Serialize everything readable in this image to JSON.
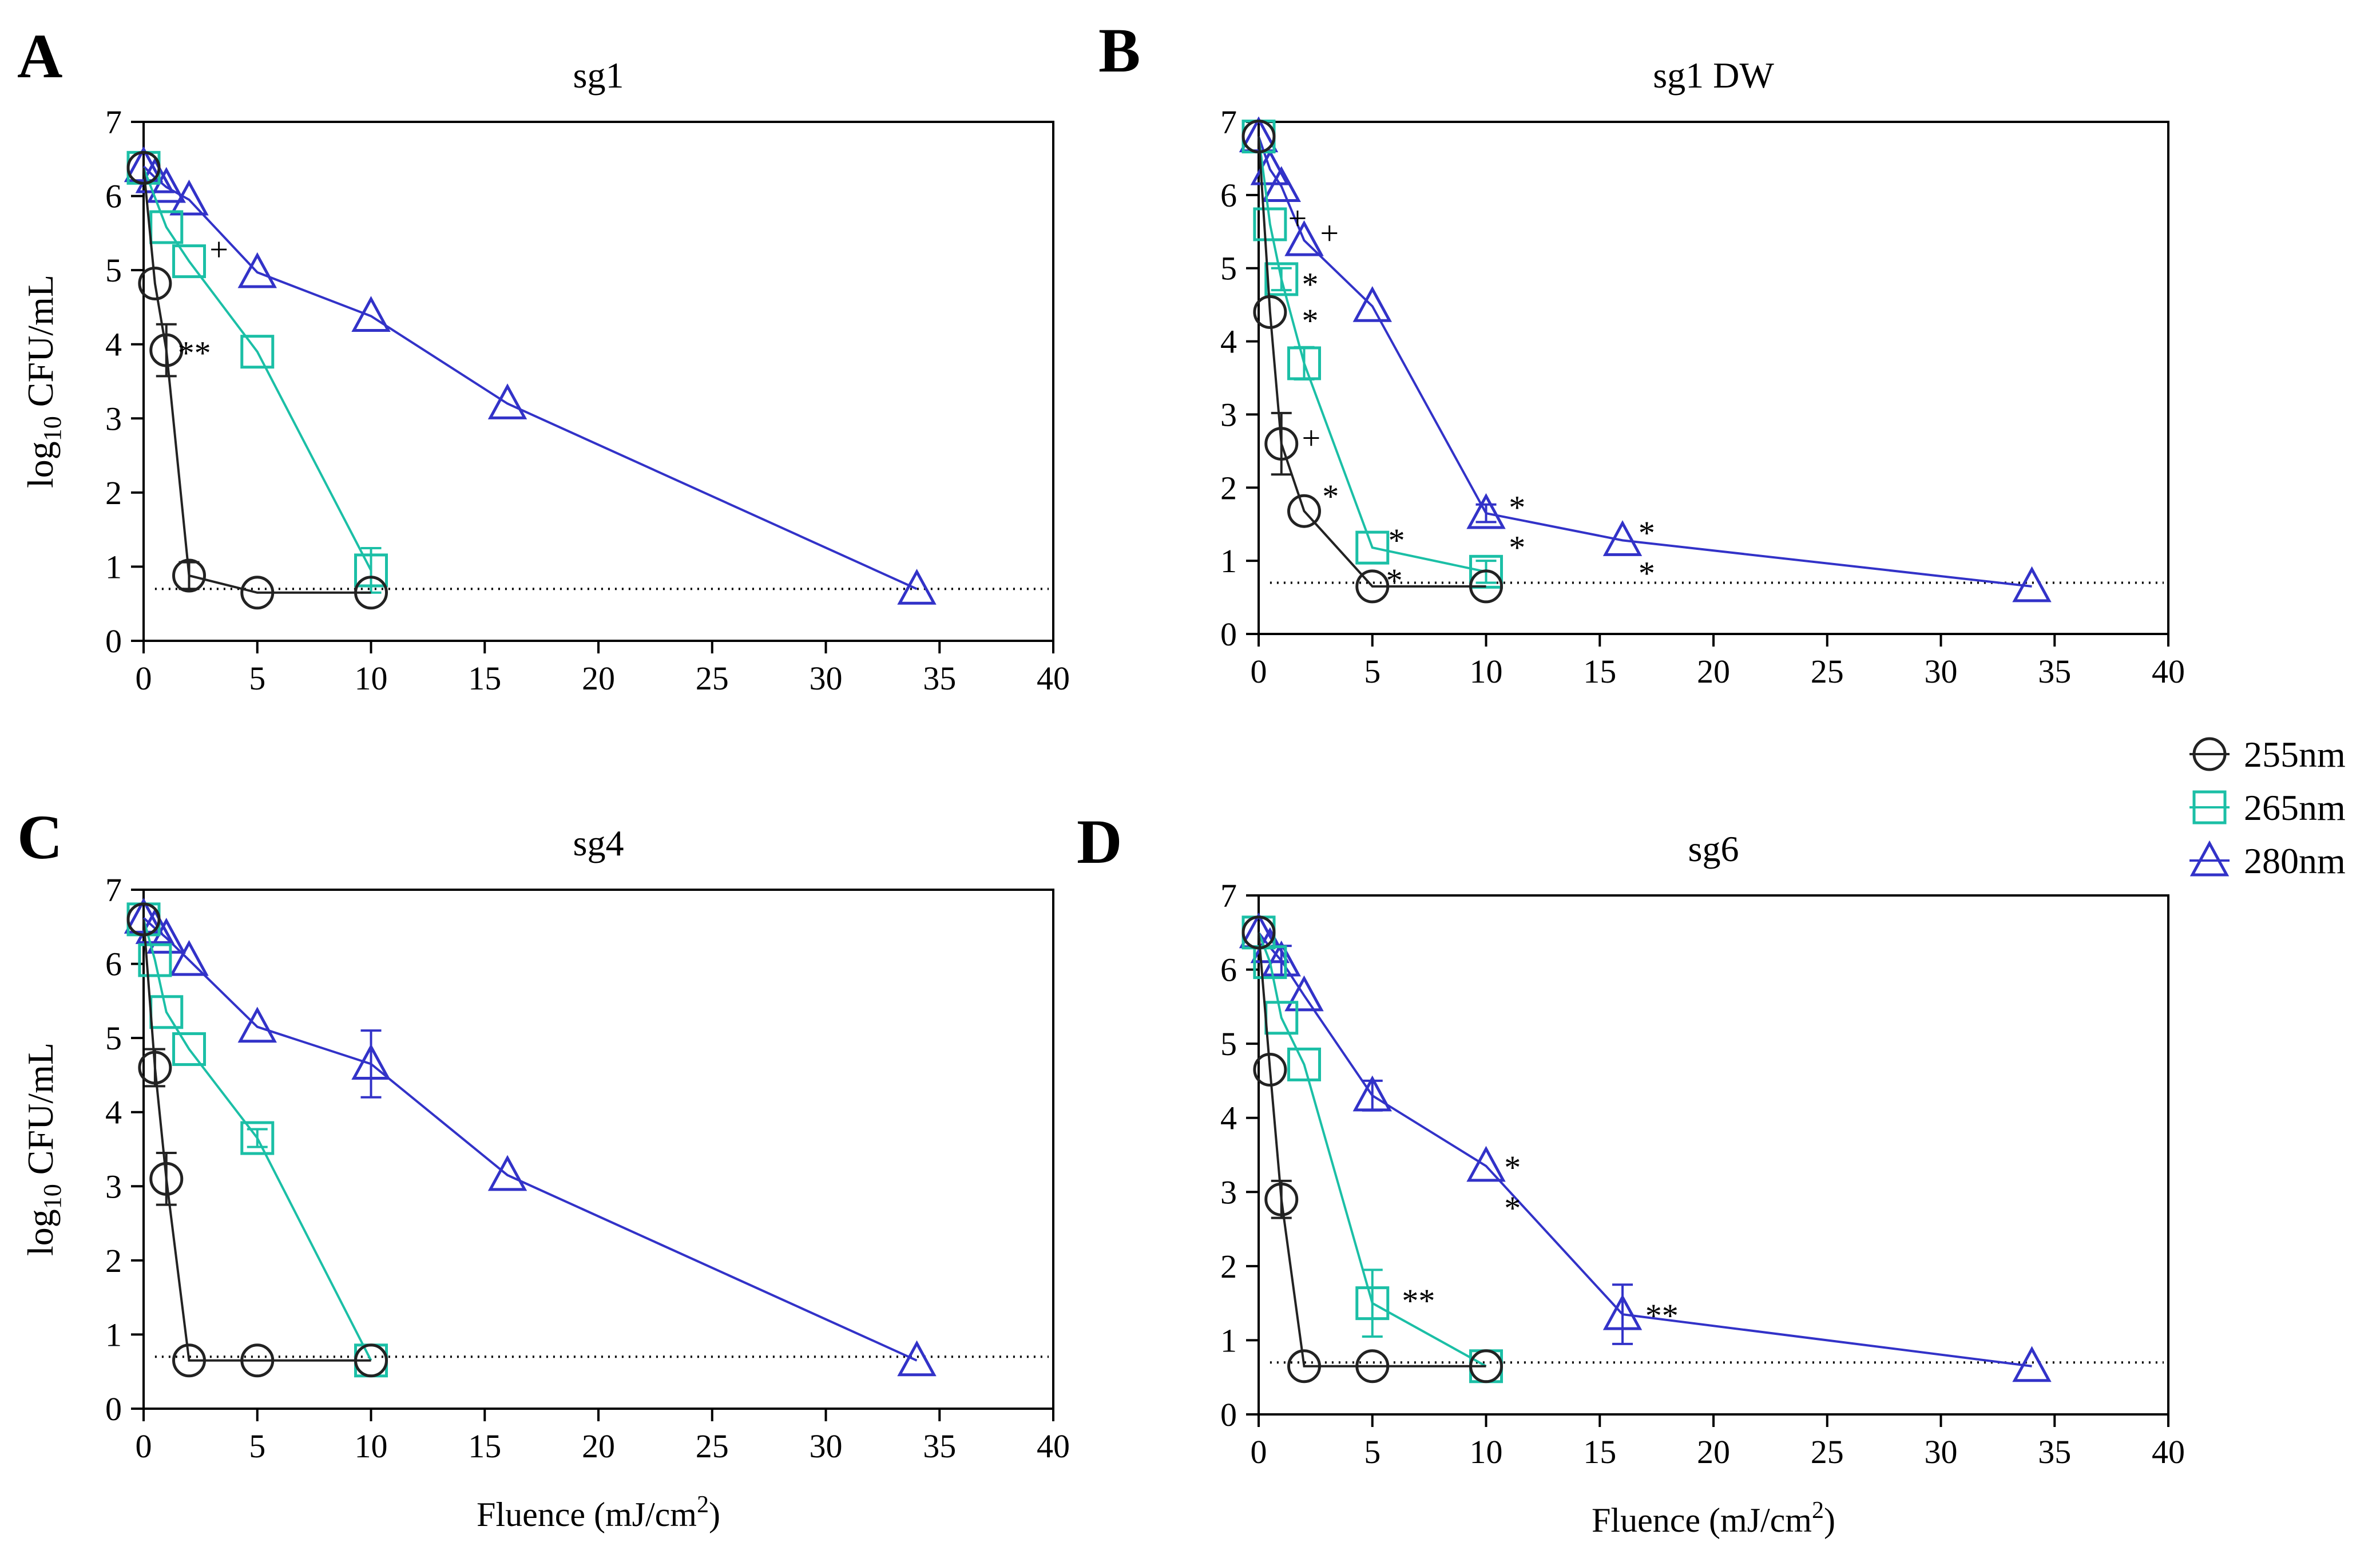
{
  "colors": {
    "s255": "#222222",
    "s265": "#1bbfa6",
    "s280": "#3232c8",
    "axis": "#000000"
  },
  "legend": {
    "entries": [
      {
        "label": "255nm",
        "marker": "circle",
        "color": "#222222"
      },
      {
        "label": "265nm",
        "marker": "square",
        "color": "#1bbfa6"
      },
      {
        "label": "280nm",
        "marker": "triangle",
        "color": "#3232c8"
      }
    ]
  },
  "chart_data": [
    {
      "type": "line",
      "panel_letter": "A",
      "title": "sg1",
      "ylabel": "log10 CFU/mL",
      "xlabel": "",
      "xlim": [
        0,
        40
      ],
      "ylim": [
        0,
        7
      ],
      "x_ticks": [
        "0",
        "5",
        "10",
        "15",
        "20",
        "25",
        "30",
        "35",
        "40"
      ],
      "y_ticks": [
        "0",
        "1",
        "2",
        "3",
        "4",
        "5",
        "6",
        "7"
      ],
      "detection_limit": 0.7,
      "series": [
        {
          "name": "255nm",
          "points": [
            {
              "x": 0,
              "y": 6.38,
              "err": 0
            },
            {
              "x": 0.5,
              "y": 4.82,
              "err": 0
            },
            {
              "x": 1,
              "y": 3.92,
              "err": 0.35
            },
            {
              "x": 2,
              "y": 0.88,
              "err": 0.18
            },
            {
              "x": 5,
              "y": 0.65,
              "err": 0
            },
            {
              "x": 10,
              "y": 0.65,
              "err": 0
            }
          ]
        },
        {
          "name": "265nm",
          "points": [
            {
              "x": 0,
              "y": 6.38,
              "err": 0
            },
            {
              "x": 1,
              "y": 5.58,
              "err": 0
            },
            {
              "x": 2,
              "y": 5.12,
              "err": 0
            },
            {
              "x": 5,
              "y": 3.9,
              "err": 0
            },
            {
              "x": 10,
              "y": 0.95,
              "err": 0.3
            }
          ]
        },
        {
          "name": "280nm",
          "points": [
            {
              "x": 0,
              "y": 6.4,
              "err": 0
            },
            {
              "x": 0.5,
              "y": 6.25,
              "err": 0
            },
            {
              "x": 1,
              "y": 6.12,
              "err": 0
            },
            {
              "x": 2,
              "y": 5.95,
              "err": 0
            },
            {
              "x": 5,
              "y": 4.97,
              "err": 0
            },
            {
              "x": 10,
              "y": 4.38,
              "err": 0
            },
            {
              "x": 16,
              "y": 3.2,
              "err": 0
            },
            {
              "x": 34,
              "y": 0.7,
              "err": 0
            }
          ]
        }
      ],
      "annotations": [
        {
          "text": "**",
          "x": 1.5,
          "y": 3.9
        },
        {
          "text": "+",
          "x": 2.9,
          "y": 5.3
        }
      ]
    },
    {
      "type": "line",
      "panel_letter": "B",
      "title": "sg1 DW",
      "ylabel": "",
      "xlabel": "",
      "xlim": [
        0,
        40
      ],
      "ylim": [
        0,
        7
      ],
      "x_ticks": [
        "0",
        "5",
        "10",
        "15",
        "20",
        "25",
        "30",
        "35",
        "40"
      ],
      "y_ticks": [
        "0",
        "1",
        "2",
        "3",
        "4",
        "5",
        "6",
        "7"
      ],
      "detection_limit": 0.7,
      "series": [
        {
          "name": "255nm",
          "points": [
            {
              "x": 0,
              "y": 6.8,
              "err": 0
            },
            {
              "x": 0.5,
              "y": 4.4,
              "err": 0
            },
            {
              "x": 1,
              "y": 2.6,
              "err": 0.42
            },
            {
              "x": 2,
              "y": 1.68,
              "err": 0
            },
            {
              "x": 5,
              "y": 0.65,
              "err": 0
            },
            {
              "x": 10,
              "y": 0.65,
              "err": 0
            }
          ]
        },
        {
          "name": "265nm",
          "points": [
            {
              "x": 0,
              "y": 6.8,
              "err": 0
            },
            {
              "x": 0.5,
              "y": 5.6,
              "err": 0
            },
            {
              "x": 1,
              "y": 4.85,
              "err": 0.15
            },
            {
              "x": 2,
              "y": 3.7,
              "err": 0.22
            },
            {
              "x": 5,
              "y": 1.18,
              "err": 0
            },
            {
              "x": 10,
              "y": 0.85,
              "err": 0.15
            }
          ]
        },
        {
          "name": "280nm",
          "points": [
            {
              "x": 0,
              "y": 6.8,
              "err": 0
            },
            {
              "x": 0.5,
              "y": 6.35,
              "err": 0
            },
            {
              "x": 1,
              "y": 6.12,
              "err": 0
            },
            {
              "x": 2,
              "y": 5.38,
              "err": 0
            },
            {
              "x": 5,
              "y": 4.48,
              "err": 0
            },
            {
              "x": 10,
              "y": 1.65,
              "err": 0.12
            },
            {
              "x": 16,
              "y": 1.28,
              "err": 0
            },
            {
              "x": 34,
              "y": 0.65,
              "err": 0
            }
          ]
        }
      ],
      "annotations": [
        {
          "text": "+",
          "x": 1.3,
          "y": 5.7
        },
        {
          "text": "+",
          "x": 2.7,
          "y": 5.5
        },
        {
          "text": "*",
          "x": 1.9,
          "y": 4.8
        },
        {
          "text": "*",
          "x": 1.9,
          "y": 4.3
        },
        {
          "text": "+",
          "x": 1.9,
          "y": 2.7
        },
        {
          "text": "*",
          "x": 2.8,
          "y": 1.9
        },
        {
          "text": "*",
          "x": 5.7,
          "y": 1.3
        },
        {
          "text": "*",
          "x": 5.6,
          "y": 0.75
        },
        {
          "text": "*",
          "x": 11.0,
          "y": 1.75
        },
        {
          "text": "*",
          "x": 11.0,
          "y": 1.2
        },
        {
          "text": "*",
          "x": 16.7,
          "y": 1.4
        },
        {
          "text": "*",
          "x": 16.7,
          "y": 0.85
        }
      ]
    },
    {
      "type": "line",
      "panel_letter": "C",
      "title": "sg4",
      "ylabel": "log10 CFU/mL",
      "xlabel": "Fluence (mJ/cm2)",
      "xlim": [
        0,
        40
      ],
      "ylim": [
        0,
        7
      ],
      "x_ticks": [
        "0",
        "5",
        "10",
        "15",
        "20",
        "25",
        "30",
        "35",
        "40"
      ],
      "y_ticks": [
        "0",
        "1",
        "2",
        "3",
        "4",
        "5",
        "6",
        "7"
      ],
      "detection_limit": 0.7,
      "series": [
        {
          "name": "255nm",
          "points": [
            {
              "x": 0,
              "y": 6.6,
              "err": 0
            },
            {
              "x": 0.5,
              "y": 4.6,
              "err": 0.25
            },
            {
              "x": 1,
              "y": 3.1,
              "err": 0.35
            },
            {
              "x": 2,
              "y": 0.65,
              "err": 0
            },
            {
              "x": 5,
              "y": 0.65,
              "err": 0
            },
            {
              "x": 10,
              "y": 0.65,
              "err": 0
            }
          ]
        },
        {
          "name": "265nm",
          "points": [
            {
              "x": 0,
              "y": 6.6,
              "err": 0
            },
            {
              "x": 0.5,
              "y": 6.05,
              "err": 0
            },
            {
              "x": 1,
              "y": 5.35,
              "err": 0
            },
            {
              "x": 2,
              "y": 4.85,
              "err": 0
            },
            {
              "x": 5,
              "y": 3.65,
              "err": 0.12
            },
            {
              "x": 10,
              "y": 0.65,
              "err": 0
            }
          ]
        },
        {
          "name": "280nm",
          "points": [
            {
              "x": 0,
              "y": 6.62,
              "err": 0
            },
            {
              "x": 0.5,
              "y": 6.48,
              "err": 0
            },
            {
              "x": 1,
              "y": 6.35,
              "err": 0
            },
            {
              "x": 2,
              "y": 6.05,
              "err": 0
            },
            {
              "x": 5,
              "y": 5.15,
              "err": 0
            },
            {
              "x": 10,
              "y": 4.65,
              "err": 0.45
            },
            {
              "x": 16,
              "y": 3.15,
              "err": 0
            },
            {
              "x": 34,
              "y": 0.65,
              "err": 0
            }
          ]
        }
      ],
      "annotations": []
    },
    {
      "type": "line",
      "panel_letter": "D",
      "title": "sg6",
      "ylabel": "",
      "xlabel": "Fluence (mJ/cm2)",
      "xlim": [
        0,
        40
      ],
      "ylim": [
        0,
        7
      ],
      "x_ticks": [
        "0",
        "5",
        "10",
        "15",
        "20",
        "25",
        "30",
        "35",
        "40"
      ],
      "y_ticks": [
        "0",
        "1",
        "2",
        "3",
        "4",
        "5",
        "6",
        "7"
      ],
      "detection_limit": 0.7,
      "series": [
        {
          "name": "255nm",
          "points": [
            {
              "x": 0,
              "y": 6.5,
              "err": 0
            },
            {
              "x": 0.5,
              "y": 4.65,
              "err": 0
            },
            {
              "x": 1,
              "y": 2.9,
              "err": 0.25
            },
            {
              "x": 2,
              "y": 0.65,
              "err": 0
            },
            {
              "x": 5,
              "y": 0.65,
              "err": 0
            },
            {
              "x": 10,
              "y": 0.65,
              "err": 0
            }
          ]
        },
        {
          "name": "265nm",
          "points": [
            {
              "x": 0,
              "y": 6.5,
              "err": 0
            },
            {
              "x": 0.5,
              "y": 6.1,
              "err": 0
            },
            {
              "x": 1,
              "y": 5.35,
              "err": 0
            },
            {
              "x": 2,
              "y": 4.72,
              "err": 0
            },
            {
              "x": 5,
              "y": 1.5,
              "err": 0.45
            },
            {
              "x": 10,
              "y": 0.65,
              "err": 0
            }
          ]
        },
        {
          "name": "280nm",
          "points": [
            {
              "x": 0,
              "y": 6.5,
              "err": 0
            },
            {
              "x": 0.5,
              "y": 6.3,
              "err": 0
            },
            {
              "x": 1,
              "y": 6.12,
              "err": 0.2
            },
            {
              "x": 2,
              "y": 5.65,
              "err": 0
            },
            {
              "x": 5,
              "y": 4.3,
              "err": 0.2
            },
            {
              "x": 10,
              "y": 3.35,
              "err": 0
            },
            {
              "x": 16,
              "y": 1.35,
              "err": 0.4
            },
            {
              "x": 34,
              "y": 0.65,
              "err": 0
            }
          ]
        }
      ],
      "annotations": [
        {
          "text": "**",
          "x": 6.3,
          "y": 1.55
        },
        {
          "text": "*",
          "x": 10.8,
          "y": 3.35
        },
        {
          "text": "*",
          "x": 10.8,
          "y": 2.8
        },
        {
          "text": "**",
          "x": 17.0,
          "y": 1.35
        }
      ]
    }
  ]
}
